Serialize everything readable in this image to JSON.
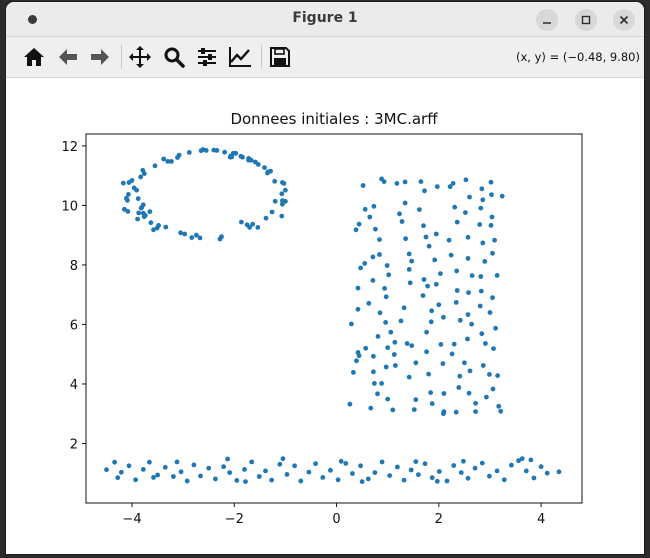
{
  "window": {
    "title": "Figure 1"
  },
  "toolbar": {
    "buttons": [
      "home-icon",
      "back-arrow-icon",
      "forward-arrow-icon",
      "pan-icon",
      "zoom-icon",
      "configure-subplots-icon",
      "edit-axis-icon",
      "save-icon"
    ],
    "coords": "(x, y) = (−0.48, 9.80)"
  },
  "colors": {
    "marker": "#1f77b4",
    "titlebar": "#ebebeb",
    "toolbar": "#efefef"
  },
  "chart_data": {
    "type": "scatter",
    "title": "Donnees initiales : 3MC.arff",
    "xlim": [
      -4.9,
      4.8
    ],
    "ylim": [
      0.0,
      12.4
    ],
    "xticks": [
      -4,
      -2,
      0,
      2,
      4
    ],
    "xtick_labels": [
      "−4",
      "−2",
      "0",
      "2",
      "4"
    ],
    "yticks": [
      2,
      4,
      6,
      8,
      10,
      12
    ],
    "ytick_labels": [
      "2",
      "4",
      "6",
      "8",
      "10",
      "12"
    ],
    "grid": false,
    "points": [
      [
        -1.34,
        11.13
      ],
      [
        -2.07,
        11.66
      ],
      [
        -4.07,
        10.37
      ],
      [
        -4.15,
        9.87
      ],
      [
        -2.05,
        11.63
      ],
      [
        -2.4,
        11.86
      ],
      [
        -1.06,
        10.04
      ],
      [
        -1.86,
        9.44
      ],
      [
        -1.59,
        11.46
      ],
      [
        -1.53,
        11.38
      ],
      [
        -2.88,
        11.78
      ],
      [
        -3.48,
        9.33
      ],
      [
        -3.79,
        11.18
      ],
      [
        -1.2,
        10.14
      ],
      [
        -3.05,
        9.08
      ],
      [
        -1.07,
        9.64
      ],
      [
        -1.0,
        10.14
      ],
      [
        -3.83,
        10.96
      ],
      [
        -1.64,
        9.37
      ],
      [
        -3.76,
        11.07
      ],
      [
        -1.38,
        9.57
      ],
      [
        -3.58,
        9.18
      ],
      [
        -1.72,
        11.52
      ],
      [
        -3.51,
        9.24
      ],
      [
        -3.81,
        9.93
      ],
      [
        -2.74,
        9.0
      ],
      [
        -1.06,
        10.16
      ],
      [
        -4.08,
        9.8
      ],
      [
        -3.96,
        10.59
      ],
      [
        -4.17,
        10.75
      ],
      [
        -1.41,
        11.27
      ],
      [
        -2.25,
        8.95
      ],
      [
        -3.78,
        10.02
      ],
      [
        -3.23,
        11.48
      ],
      [
        -1.07,
        10.39
      ],
      [
        -4.06,
        10.77
      ],
      [
        -3.89,
        9.54
      ],
      [
        -2.83,
        8.92
      ],
      [
        -3.76,
        9.62
      ],
      [
        -3.91,
        10.51
      ],
      [
        -2.34,
        11.85
      ],
      [
        -1.72,
        11.58
      ],
      [
        -3.55,
        11.33
      ],
      [
        -1.54,
        9.26
      ],
      [
        -2.19,
        11.79
      ],
      [
        -2.97,
        9.04
      ],
      [
        -3.11,
        11.61
      ],
      [
        -3.87,
        9.75
      ],
      [
        -3.78,
        9.74
      ],
      [
        -1.75,
        9.35
      ],
      [
        -1.03,
        10.74
      ],
      [
        -2.61,
        11.88
      ],
      [
        -3.08,
        11.69
      ],
      [
        -3.74,
        9.66
      ],
      [
        -1.84,
        11.62
      ],
      [
        -2.02,
        11.75
      ],
      [
        -3.65,
        9.79
      ],
      [
        -1.0,
        10.51
      ],
      [
        -3.82,
        9.91
      ],
      [
        -4.0,
        10.84
      ],
      [
        -3.38,
        11.56
      ],
      [
        -1.29,
        11.15
      ],
      [
        -2.67,
        8.91
      ],
      [
        -1.87,
        11.65
      ],
      [
        -3.34,
        9.27
      ],
      [
        -1.67,
        11.52
      ],
      [
        -1.35,
        11.09
      ],
      [
        -1.06,
        10.77
      ],
      [
        -4.09,
        10.17
      ],
      [
        -2.65,
        11.84
      ],
      [
        -2.28,
        8.87
      ],
      [
        -4.11,
        10.24
      ],
      [
        -1.21,
        10.81
      ],
      [
        -3.63,
        9.42
      ],
      [
        -1.97,
        11.75
      ],
      [
        -1.7,
        9.26
      ],
      [
        -2.08,
        11.62
      ],
      [
        -3.88,
        10.23
      ],
      [
        -1.26,
        9.78
      ],
      [
        -2.55,
        11.85
      ],
      [
        -3.3,
        11.48
      ],
      [
        0.67,
        3.19
      ],
      [
        0.26,
        3.32
      ],
      [
        0.72,
        4.41
      ],
      [
        0.42,
        5.06
      ],
      [
        0.44,
        4.95
      ],
      [
        0.39,
        4.78
      ],
      [
        0.57,
        5.2
      ],
      [
        0.33,
        4.39
      ],
      [
        0.29,
        6.02
      ],
      [
        0.42,
        6.51
      ],
      [
        0.42,
        7.22
      ],
      [
        0.47,
        7.9
      ],
      [
        0.55,
        8.05
      ],
      [
        0.38,
        9.18
      ],
      [
        0.44,
        9.37
      ],
      [
        0.52,
        10.67
      ],
      [
        0.56,
        9.87
      ],
      [
        0.71,
        8.27
      ],
      [
        0.71,
        7.48
      ],
      [
        0.63,
        6.71
      ],
      [
        0.85,
        6.39
      ],
      [
        0.97,
        6.93
      ],
      [
        0.81,
        5.6
      ],
      [
        0.72,
        4.93
      ],
      [
        0.74,
        4.02
      ],
      [
        0.8,
        3.67
      ],
      [
        0.88,
        4.02
      ],
      [
        0.88,
        10.89
      ],
      [
        0.93,
        10.8
      ],
      [
        0.73,
        9.97
      ],
      [
        0.65,
        9.61
      ],
      [
        0.76,
        9.2
      ],
      [
        0.84,
        8.85
      ],
      [
        0.84,
        8.35
      ],
      [
        0.99,
        7.98
      ],
      [
        1.02,
        7.67
      ],
      [
        0.94,
        7.21
      ],
      [
        0.96,
        6.07
      ],
      [
        1.06,
        5.74
      ],
      [
        1.14,
        5.4
      ],
      [
        1.0,
        5.22
      ],
      [
        1.13,
        4.99
      ],
      [
        1.15,
        4.62
      ],
      [
        0.97,
        4.57
      ],
      [
        1.0,
        3.49
      ],
      [
        1.1,
        3.13
      ],
      [
        1.18,
        10.74
      ],
      [
        1.34,
        10.79
      ],
      [
        1.34,
        10.08
      ],
      [
        1.23,
        9.72
      ],
      [
        1.28,
        9.46
      ],
      [
        1.35,
        8.88
      ],
      [
        1.42,
        8.37
      ],
      [
        1.47,
        8.13
      ],
      [
        1.42,
        7.85
      ],
      [
        1.44,
        7.4
      ],
      [
        1.32,
        6.56
      ],
      [
        1.26,
        6.12
      ],
      [
        1.38,
        5.36
      ],
      [
        1.47,
        5.29
      ],
      [
        1.55,
        4.71
      ],
      [
        1.42,
        4.23
      ],
      [
        1.55,
        3.47
      ],
      [
        1.52,
        3.14
      ],
      [
        1.65,
        10.8
      ],
      [
        1.72,
        10.49
      ],
      [
        1.62,
        9.86
      ],
      [
        1.7,
        9.32
      ],
      [
        1.75,
        8.94
      ],
      [
        1.81,
        8.63
      ],
      [
        1.71,
        7.51
      ],
      [
        1.78,
        7.29
      ],
      [
        1.69,
        6.97
      ],
      [
        1.86,
        6.46
      ],
      [
        1.85,
        6.09
      ],
      [
        1.76,
        5.74
      ],
      [
        1.76,
        5.08
      ],
      [
        1.8,
        4.33
      ],
      [
        1.84,
        3.71
      ],
      [
        1.87,
        3.34
      ],
      [
        1.97,
        10.63
      ],
      [
        1.95,
        9.04
      ],
      [
        1.92,
        8.17
      ],
      [
        2.03,
        7.71
      ],
      [
        1.95,
        7.35
      ],
      [
        2.0,
        6.66
      ],
      [
        2.09,
        6.24
      ],
      [
        2.04,
        5.33
      ],
      [
        2.08,
        4.68
      ],
      [
        2.1,
        3.68
      ],
      [
        2.1,
        3.07
      ],
      [
        2.09,
        3.0
      ],
      [
        2.28,
        10.74
      ],
      [
        2.22,
        10.63
      ],
      [
        2.31,
        9.94
      ],
      [
        2.36,
        9.44
      ],
      [
        2.2,
        8.83
      ],
      [
        2.24,
        8.33
      ],
      [
        2.35,
        7.8
      ],
      [
        2.36,
        7.14
      ],
      [
        2.34,
        6.74
      ],
      [
        2.42,
        6.14
      ],
      [
        2.3,
        5.34
      ],
      [
        2.26,
        5.01
      ],
      [
        2.41,
        4.26
      ],
      [
        2.39,
        3.88
      ],
      [
        2.34,
        3.05
      ],
      [
        2.53,
        10.86
      ],
      [
        2.6,
        10.28
      ],
      [
        2.52,
        9.76
      ],
      [
        2.57,
        8.93
      ],
      [
        2.57,
        8.22
      ],
      [
        2.65,
        7.64
      ],
      [
        2.58,
        7.07
      ],
      [
        2.57,
        6.33
      ],
      [
        2.64,
        6.01
      ],
      [
        2.56,
        5.51
      ],
      [
        2.5,
        4.71
      ],
      [
        2.61,
        4.44
      ],
      [
        2.59,
        3.69
      ],
      [
        2.72,
        3.35
      ],
      [
        2.72,
        3.07
      ],
      [
        2.84,
        10.56
      ],
      [
        2.86,
        10.19
      ],
      [
        2.82,
        9.91
      ],
      [
        2.8,
        9.36
      ],
      [
        2.86,
        8.74
      ],
      [
        2.9,
        8.12
      ],
      [
        2.82,
        7.61
      ],
      [
        2.83,
        7.12
      ],
      [
        2.81,
        6.62
      ],
      [
        2.84,
        5.69
      ],
      [
        2.91,
        5.36
      ],
      [
        2.87,
        4.62
      ],
      [
        2.99,
        4.32
      ],
      [
        2.93,
        3.56
      ],
      [
        3.02,
        10.78
      ],
      [
        3.03,
        10.36
      ],
      [
        3.04,
        9.61
      ],
      [
        3.02,
        9.33
      ],
      [
        3.09,
        8.83
      ],
      [
        3.05,
        8.39
      ],
      [
        3.14,
        7.65
      ],
      [
        3.05,
        6.9
      ],
      [
        3.0,
        6.4
      ],
      [
        3.11,
        5.87
      ],
      [
        3.07,
        5.19
      ],
      [
        3.15,
        4.28
      ],
      [
        3.06,
        3.83
      ],
      [
        3.17,
        3.25
      ],
      [
        3.21,
        3.08
      ],
      [
        3.24,
        10.31
      ],
      [
        -4.5,
        1.12
      ],
      [
        -4.34,
        1.37
      ],
      [
        -4.21,
        1.03
      ],
      [
        -4.06,
        1.25
      ],
      [
        -3.93,
        0.78
      ],
      [
        -3.78,
        1.13
      ],
      [
        -3.66,
        1.37
      ],
      [
        -3.5,
        0.94
      ],
      [
        -3.35,
        1.2
      ],
      [
        -3.19,
        0.89
      ],
      [
        -3.04,
        1.05
      ],
      [
        -2.92,
        0.74
      ],
      [
        -2.79,
        1.28
      ],
      [
        -2.66,
        0.91
      ],
      [
        -2.5,
        1.17
      ],
      [
        -2.37,
        0.81
      ],
      [
        -2.21,
        1.22
      ],
      [
        -2.09,
        1.02
      ],
      [
        -1.95,
        0.76
      ],
      [
        -1.8,
        1.13
      ],
      [
        -1.66,
        1.38
      ],
      [
        -1.51,
        0.89
      ],
      [
        -1.39,
        1.08
      ],
      [
        -1.27,
        0.77
      ],
      [
        -1.11,
        1.3
      ],
      [
        -0.97,
        0.96
      ],
      [
        -0.82,
        1.25
      ],
      [
        -0.7,
        0.74
      ],
      [
        -0.54,
        1.04
      ],
      [
        -0.41,
        1.32
      ],
      [
        -0.27,
        0.86
      ],
      [
        -0.12,
        1.1
      ],
      [
        0.03,
        0.78
      ],
      [
        0.18,
        1.33
      ],
      [
        0.31,
        0.99
      ],
      [
        0.47,
        1.25
      ],
      [
        0.62,
        0.81
      ],
      [
        0.75,
        1.02
      ],
      [
        0.89,
        1.38
      ],
      [
        1.04,
        0.92
      ],
      [
        1.19,
        1.21
      ],
      [
        1.32,
        0.77
      ],
      [
        1.46,
        1.11
      ],
      [
        1.6,
        0.95
      ],
      [
        1.73,
        1.32
      ],
      [
        1.87,
        0.85
      ],
      [
        2.01,
        1.06
      ],
      [
        2.16,
        0.74
      ],
      [
        2.29,
        1.26
      ],
      [
        2.44,
        1.02
      ],
      [
        2.57,
        0.83
      ],
      [
        2.71,
        1.17
      ],
      [
        2.85,
        1.34
      ],
      [
        2.99,
        0.9
      ],
      [
        3.14,
        1.08
      ],
      [
        3.28,
        0.78
      ],
      [
        3.42,
        1.27
      ],
      [
        3.56,
        1.42
      ],
      [
        3.71,
        1.08
      ],
      [
        3.86,
        0.84
      ],
      [
        4.0,
        1.22
      ],
      [
        4.12,
        1.0
      ],
      [
        4.35,
        1.05
      ],
      [
        -4.28,
        0.85
      ],
      [
        -3.12,
        1.38
      ],
      [
        -2.13,
        1.48
      ],
      [
        -1.05,
        1.49
      ],
      [
        0.5,
        0.72
      ],
      [
        1.55,
        1.39
      ],
      [
        2.48,
        1.4
      ],
      [
        3.63,
        1.49
      ],
      [
        -3.58,
        0.86
      ],
      [
        -1.78,
        0.72
      ],
      [
        0.09,
        1.4
      ],
      [
        1.97,
        0.73
      ],
      [
        3.8,
        1.45
      ]
    ]
  }
}
